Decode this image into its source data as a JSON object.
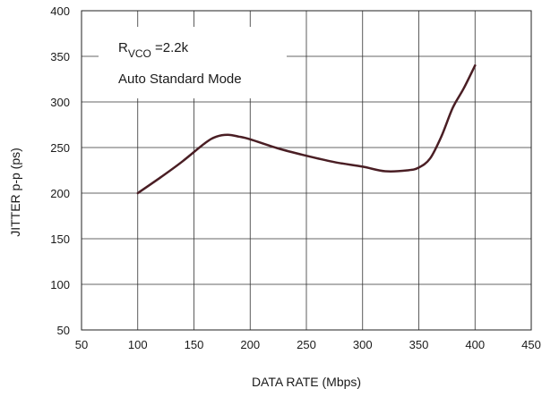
{
  "chart_data": {
    "type": "line",
    "xlabel": "DATA RATE (Mbps)",
    "ylabel": "JITTER p-p (ps)",
    "xlim": [
      50,
      450
    ],
    "ylim": [
      50,
      400
    ],
    "xticks": [
      50,
      100,
      150,
      200,
      250,
      300,
      350,
      400,
      450
    ],
    "yticks": [
      50,
      100,
      150,
      200,
      250,
      300,
      350,
      400
    ],
    "grid": true,
    "colors": {
      "line": "#4a1e24",
      "grid": "#333333",
      "frame": "#222222"
    },
    "annotation": {
      "r_main": "R",
      "r_sub": "VCO",
      "r_value": " =2.2k",
      "mode": "Auto Standard Mode"
    },
    "series": [
      {
        "x": [
          100,
          120,
          140,
          160,
          170,
          180,
          190,
          200,
          225,
          250,
          275,
          300,
          320,
          340,
          350,
          360,
          370,
          380,
          390,
          400
        ],
        "values": [
          200,
          217,
          235,
          255,
          262,
          264,
          262,
          259,
          249,
          241,
          234,
          229,
          224,
          225,
          228,
          238,
          262,
          293,
          315,
          340
        ]
      }
    ]
  }
}
